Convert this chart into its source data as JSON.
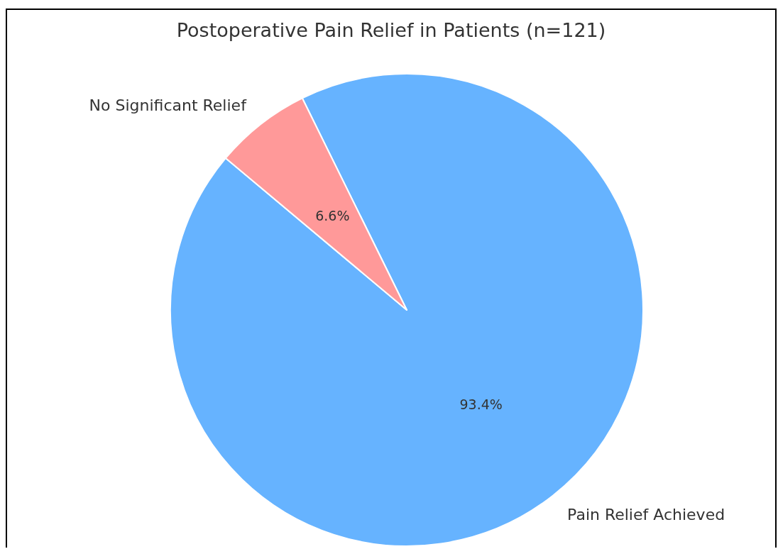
{
  "chart_data": {
    "type": "pie",
    "title": "Postoperative Pain Relief in Patients (n=121)",
    "categories": [
      "Pain Relief Achieved",
      "No Significant Relief"
    ],
    "values": [
      93.4,
      6.6
    ],
    "colors": [
      "#66b3ff",
      "#ff9999"
    ],
    "value_labels": [
      "93.4%",
      "6.6%"
    ]
  }
}
